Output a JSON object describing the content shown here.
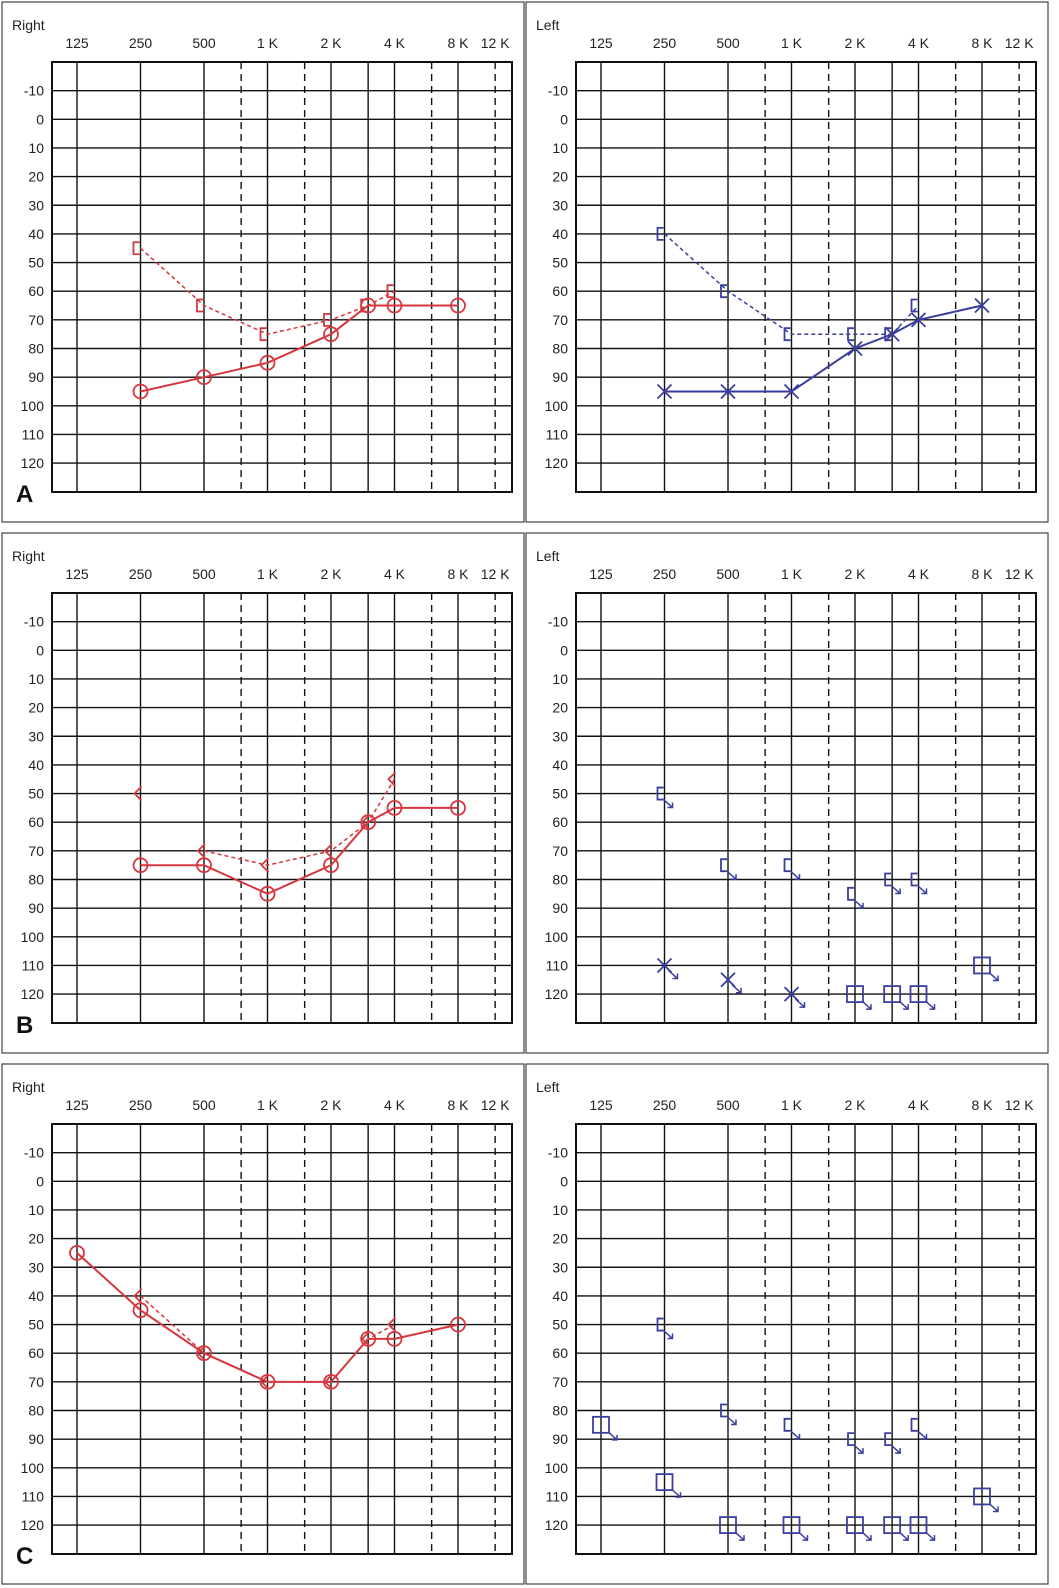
{
  "rows": [
    {
      "label": "A"
    },
    {
      "label": "B"
    },
    {
      "label": "C"
    }
  ],
  "ear_labels": {
    "right": "Right",
    "left": "Left"
  },
  "colors": {
    "right": "#d6373e",
    "left": "#3a3f9e"
  },
  "chart_data": [
    {
      "type": "scatter",
      "row": "A",
      "ear": "Right",
      "x_ticks": [
        "125",
        "250",
        "500",
        "1 K",
        "2 K",
        "4 K",
        "8 K",
        "12 K"
      ],
      "y_ticks": [
        "-10",
        "0",
        "10",
        "20",
        "30",
        "40",
        "50",
        "60",
        "70",
        "80",
        "90",
        "100",
        "110",
        "120"
      ],
      "x_scale": "log2 frequency (Hz)",
      "ylim": [
        -20,
        130
      ],
      "y_inverted": true,
      "grid": true,
      "series": [
        {
          "symbol": "circle",
          "line": "solid",
          "points": [
            [
              250,
              95
            ],
            [
              500,
              90
            ],
            [
              1000,
              85
            ],
            [
              2000,
              75
            ],
            [
              3000,
              65
            ],
            [
              4000,
              65
            ],
            [
              8000,
              65
            ]
          ]
        },
        {
          "symbol": "bracket",
          "line": "dashed",
          "points": [
            [
              250,
              45
            ],
            [
              500,
              65
            ],
            [
              1000,
              75
            ],
            [
              2000,
              70
            ],
            [
              3000,
              65
            ],
            [
              4000,
              60
            ]
          ]
        }
      ]
    },
    {
      "type": "scatter",
      "row": "A",
      "ear": "Left",
      "x_ticks": [
        "125",
        "250",
        "500",
        "1 K",
        "2 K",
        "4 K",
        "8 K",
        "12 K"
      ],
      "y_ticks": [
        "-10",
        "0",
        "10",
        "20",
        "30",
        "40",
        "50",
        "60",
        "70",
        "80",
        "90",
        "100",
        "110",
        "120"
      ],
      "x_scale": "log2 frequency (Hz)",
      "ylim": [
        -20,
        130
      ],
      "y_inverted": true,
      "grid": true,
      "series": [
        {
          "symbol": "x",
          "line": "solid",
          "points": [
            [
              250,
              95
            ],
            [
              500,
              95
            ],
            [
              1000,
              95
            ],
            [
              2000,
              80
            ],
            [
              3000,
              75
            ],
            [
              4000,
              70
            ],
            [
              8000,
              65
            ]
          ]
        },
        {
          "symbol": "bracket",
          "line": "dashed",
          "points": [
            [
              250,
              40
            ],
            [
              500,
              60
            ],
            [
              1000,
              75
            ],
            [
              2000,
              75
            ],
            [
              3000,
              75
            ],
            [
              4000,
              65
            ]
          ]
        }
      ]
    },
    {
      "type": "scatter",
      "row": "B",
      "ear": "Right",
      "x_ticks": [
        "125",
        "250",
        "500",
        "1 K",
        "2 K",
        "4 K",
        "8 K",
        "12 K"
      ],
      "y_ticks": [
        "-10",
        "0",
        "10",
        "20",
        "30",
        "40",
        "50",
        "60",
        "70",
        "80",
        "90",
        "100",
        "110",
        "120"
      ],
      "x_scale": "log2 frequency (Hz)",
      "ylim": [
        -20,
        130
      ],
      "y_inverted": true,
      "grid": true,
      "series": [
        {
          "symbol": "circle",
          "line": "solid",
          "points": [
            [
              250,
              75
            ],
            [
              500,
              75
            ],
            [
              1000,
              85
            ],
            [
              2000,
              75
            ],
            [
              3000,
              60
            ],
            [
              4000,
              55
            ],
            [
              8000,
              55
            ]
          ]
        },
        {
          "symbol": "chevron",
          "line": "dashed",
          "points": [
            [
              500,
              70
            ],
            [
              1000,
              75
            ],
            [
              2000,
              70
            ],
            [
              3000,
              60
            ],
            [
              4000,
              45
            ]
          ]
        },
        {
          "symbol": "chevron",
          "line": "none",
          "points": [
            [
              250,
              50
            ]
          ]
        }
      ]
    },
    {
      "type": "scatter",
      "row": "B",
      "ear": "Left",
      "x_ticks": [
        "125",
        "250",
        "500",
        "1 K",
        "2 K",
        "4 K",
        "8 K",
        "12 K"
      ],
      "y_ticks": [
        "-10",
        "0",
        "10",
        "20",
        "30",
        "40",
        "50",
        "60",
        "70",
        "80",
        "90",
        "100",
        "110",
        "120"
      ],
      "x_scale": "log2 frequency (Hz)",
      "ylim": [
        -20,
        130
      ],
      "y_inverted": true,
      "grid": true,
      "series": [
        {
          "symbol": "bracket-noresponse",
          "line": "none",
          "points": [
            [
              250,
              50
            ],
            [
              500,
              75
            ],
            [
              1000,
              75
            ],
            [
              2000,
              85
            ],
            [
              3000,
              80
            ],
            [
              4000,
              80
            ]
          ]
        },
        {
          "symbol": "x-noresponse",
          "line": "none",
          "points": [
            [
              250,
              110
            ],
            [
              500,
              115
            ],
            [
              1000,
              120
            ]
          ]
        },
        {
          "symbol": "square-noresponse",
          "line": "none",
          "points": [
            [
              2000,
              120
            ],
            [
              3000,
              120
            ],
            [
              4000,
              120
            ],
            [
              8000,
              110
            ]
          ]
        }
      ]
    },
    {
      "type": "scatter",
      "row": "C",
      "ear": "Right",
      "x_ticks": [
        "125",
        "250",
        "500",
        "1 K",
        "2 K",
        "4 K",
        "8 K",
        "12 K"
      ],
      "y_ticks": [
        "-10",
        "0",
        "10",
        "20",
        "30",
        "40",
        "50",
        "60",
        "70",
        "80",
        "90",
        "100",
        "110",
        "120"
      ],
      "x_scale": "log2 frequency (Hz)",
      "ylim": [
        -20,
        130
      ],
      "y_inverted": true,
      "grid": true,
      "series": [
        {
          "symbol": "circle",
          "line": "solid",
          "points": [
            [
              125,
              25
            ],
            [
              250,
              45
            ],
            [
              500,
              60
            ],
            [
              1000,
              70
            ],
            [
              2000,
              70
            ],
            [
              3000,
              55
            ],
            [
              4000,
              55
            ],
            [
              8000,
              50
            ]
          ]
        },
        {
          "symbol": "chevron",
          "line": "dashed",
          "points": [
            [
              250,
              40
            ],
            [
              500,
              60
            ],
            [
              1000,
              70
            ],
            [
              2000,
              70
            ],
            [
              3000,
              55
            ],
            [
              4000,
              50
            ]
          ]
        }
      ]
    },
    {
      "type": "scatter",
      "row": "C",
      "ear": "Left",
      "x_ticks": [
        "125",
        "250",
        "500",
        "1 K",
        "2 K",
        "4 K",
        "8 K",
        "12 K"
      ],
      "y_ticks": [
        "-10",
        "0",
        "10",
        "20",
        "30",
        "40",
        "50",
        "60",
        "70",
        "80",
        "90",
        "100",
        "110",
        "120"
      ],
      "x_scale": "log2 frequency (Hz)",
      "ylim": [
        -20,
        130
      ],
      "y_inverted": true,
      "grid": true,
      "series": [
        {
          "symbol": "bracket-noresponse",
          "line": "none",
          "points": [
            [
              250,
              50
            ],
            [
              500,
              80
            ],
            [
              1000,
              85
            ],
            [
              2000,
              90
            ],
            [
              3000,
              90
            ],
            [
              4000,
              85
            ]
          ]
        },
        {
          "symbol": "square-noresponse",
          "line": "none",
          "points": [
            [
              125,
              85
            ],
            [
              250,
              105
            ],
            [
              500,
              120
            ],
            [
              1000,
              120
            ],
            [
              2000,
              120
            ],
            [
              3000,
              120
            ],
            [
              4000,
              120
            ],
            [
              8000,
              110
            ]
          ]
        }
      ]
    }
  ]
}
